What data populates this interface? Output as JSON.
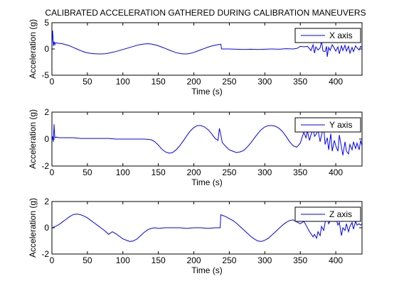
{
  "title": "CALIBRATED ACCELERATION GATHERED DURING CALIBRATION MANEUVERS",
  "colors": {
    "line": "#0000ff",
    "axes": "#000000",
    "background": "#ffffff"
  },
  "chart_data": [
    {
      "type": "line",
      "title": "CALIBRATED ACCELERATION GATHERED DURING CALIBRATION MANEUVERS",
      "xlabel": "Time (s)",
      "ylabel": "Acceleration (g)",
      "xlim": [
        0,
        437
      ],
      "ylim": [
        -5,
        5
      ],
      "xticks": [
        0,
        50,
        100,
        150,
        200,
        250,
        300,
        350,
        400
      ],
      "yticks": [
        -5,
        0,
        5
      ],
      "grid": false,
      "legend_position": "top-right",
      "series": [
        {
          "name": "X axis",
          "x": [
            0,
            1,
            2,
            3,
            4,
            5,
            8,
            12,
            16,
            20,
            25,
            30,
            35,
            40,
            45,
            50,
            55,
            60,
            65,
            70,
            75,
            80,
            85,
            90,
            95,
            100,
            105,
            110,
            115,
            120,
            125,
            130,
            135,
            140,
            145,
            150,
            155,
            160,
            165,
            170,
            175,
            180,
            185,
            190,
            195,
            200,
            205,
            210,
            215,
            220,
            225,
            230,
            235,
            238,
            239,
            240,
            250,
            260,
            270,
            280,
            290,
            300,
            310,
            320,
            330,
            340,
            345,
            348,
            350,
            355,
            360,
            362,
            365,
            368,
            370,
            372,
            375,
            378,
            380,
            382,
            385,
            387,
            388,
            390,
            392,
            395,
            398,
            400,
            403,
            405,
            408,
            410,
            413,
            415,
            418,
            420,
            423,
            425,
            428,
            430,
            433,
            435,
            437
          ],
          "y": [
            1.0,
            3.5,
            0.6,
            1.4,
            0.8,
            1.2,
            1.1,
            1.05,
            0.95,
            0.8,
            0.6,
            0.3,
            0.0,
            -0.3,
            -0.55,
            -0.75,
            -0.85,
            -0.9,
            -0.95,
            -0.95,
            -0.9,
            -0.8,
            -0.65,
            -0.5,
            -0.3,
            -0.1,
            0.1,
            0.3,
            0.5,
            0.7,
            0.85,
            0.95,
            1.0,
            0.95,
            0.8,
            0.6,
            0.35,
            0.1,
            -0.2,
            -0.45,
            -0.7,
            -0.85,
            -0.95,
            -0.95,
            -0.85,
            -0.65,
            -0.4,
            -0.15,
            0.1,
            0.35,
            0.55,
            0.7,
            0.85,
            0.9,
            0.0,
            0.0,
            0.0,
            -0.05,
            -0.1,
            -0.05,
            -0.1,
            -0.05,
            0.0,
            -0.05,
            0.05,
            0.0,
            0.1,
            0.3,
            0.5,
            0.4,
            0.5,
            0.2,
            -0.3,
            0.8,
            -0.8,
            0.4,
            -0.2,
            0.2,
            1.5,
            -0.4,
            -0.5,
            0.5,
            -1.5,
            0.3,
            -0.3,
            0.8,
            0.1,
            -0.4,
            0.4,
            -0.9,
            0.6,
            -0.3,
            0.7,
            -0.4,
            0.5,
            -0.8,
            0.3,
            -0.5,
            0.6,
            0.2,
            -0.2,
            0.5,
            0.3
          ]
        }
      ]
    },
    {
      "type": "line",
      "xlabel": "Time (s)",
      "ylabel": "Acceleration (g)",
      "xlim": [
        0,
        437
      ],
      "ylim": [
        -2,
        2
      ],
      "xticks": [
        0,
        50,
        100,
        150,
        200,
        250,
        300,
        350,
        400
      ],
      "yticks": [
        -2,
        0,
        2
      ],
      "grid": false,
      "legend_position": "top-right",
      "series": [
        {
          "name": "Y axis",
          "x": [
            0,
            1,
            2,
            3,
            4,
            6,
            10,
            20,
            30,
            40,
            50,
            60,
            70,
            80,
            90,
            100,
            110,
            120,
            130,
            140,
            145,
            150,
            155,
            160,
            165,
            170,
            175,
            180,
            185,
            190,
            195,
            200,
            205,
            210,
            215,
            220,
            225,
            230,
            234,
            236,
            238,
            240,
            245,
            250,
            255,
            260,
            265,
            270,
            275,
            280,
            285,
            290,
            295,
            300,
            305,
            310,
            315,
            320,
            325,
            330,
            335,
            340,
            345,
            350,
            353,
            355,
            358,
            360,
            363,
            365,
            368,
            370,
            373,
            375,
            378,
            380,
            383,
            385,
            388,
            390,
            393,
            395,
            398,
            400,
            403,
            405,
            408,
            410,
            413,
            415,
            418,
            420,
            423,
            425,
            428,
            430,
            433,
            435,
            437
          ],
          "y": [
            0.0,
            0.2,
            -0.2,
            1.1,
            0.1,
            0.15,
            0.1,
            0.1,
            0.1,
            0.05,
            0.05,
            0.05,
            0.05,
            0.05,
            0.0,
            0.0,
            0.0,
            0.0,
            0.0,
            -0.05,
            -0.2,
            -0.45,
            -0.75,
            -0.95,
            -1.05,
            -1.0,
            -0.8,
            -0.5,
            -0.15,
            0.25,
            0.6,
            0.85,
            1.0,
            1.0,
            0.9,
            0.7,
            0.4,
            0.05,
            -0.1,
            0.8,
            0.3,
            -0.25,
            -0.55,
            -0.8,
            -0.9,
            -1.0,
            -0.95,
            -0.85,
            -0.6,
            -0.3,
            0.05,
            0.4,
            0.7,
            0.9,
            1.0,
            1.0,
            0.95,
            0.8,
            0.55,
            0.2,
            -0.2,
            -0.5,
            -0.6,
            -0.3,
            0.2,
            0.5,
            0.1,
            0.6,
            -0.1,
            0.3,
            0.8,
            0.2,
            0.4,
            0.7,
            -0.2,
            0.3,
            0.9,
            -0.4,
            0.1,
            -0.8,
            0.4,
            -0.9,
            -0.1,
            -0.5,
            -0.9,
            0.3,
            -0.6,
            -1.2,
            -0.2,
            -0.9,
            -1.1,
            -0.4,
            -0.8,
            -0.2,
            -0.7,
            -0.3,
            -0.8,
            -0.1,
            -0.5
          ]
        }
      ]
    },
    {
      "type": "line",
      "xlabel": "Time (s)",
      "ylabel": "Acceleration (g)",
      "xlim": [
        0,
        437
      ],
      "ylim": [
        -2,
        2
      ],
      "xticks": [
        0,
        50,
        100,
        150,
        200,
        250,
        300,
        350,
        400
      ],
      "yticks": [
        -2,
        0,
        2
      ],
      "grid": false,
      "legend_position": "top-right",
      "series": [
        {
          "name": "Z axis",
          "x": [
            0,
            5,
            10,
            15,
            20,
            25,
            30,
            35,
            40,
            45,
            50,
            55,
            60,
            65,
            70,
            75,
            80,
            85,
            90,
            95,
            100,
            105,
            110,
            115,
            120,
            125,
            130,
            135,
            140,
            145,
            150,
            160,
            170,
            180,
            190,
            200,
            210,
            220,
            230,
            237,
            238,
            240,
            245,
            250,
            255,
            260,
            265,
            270,
            275,
            280,
            285,
            290,
            295,
            300,
            305,
            310,
            315,
            320,
            325,
            330,
            335,
            340,
            345,
            350,
            355,
            360,
            363,
            365,
            368,
            370,
            373,
            375,
            378,
            380,
            383,
            385,
            388,
            390,
            393,
            395,
            398,
            400,
            403,
            405,
            408,
            410,
            413,
            415,
            418,
            420,
            423,
            425,
            428,
            430,
            433,
            435,
            437
          ],
          "y": [
            0.0,
            0.1,
            0.25,
            0.45,
            0.65,
            0.85,
            1.0,
            1.05,
            1.0,
            0.9,
            0.75,
            0.55,
            0.35,
            0.15,
            -0.05,
            -0.25,
            -0.5,
            -0.3,
            -0.45,
            -0.65,
            -0.85,
            -0.95,
            -1.05,
            -1.0,
            -0.85,
            -0.6,
            -0.35,
            -0.15,
            -0.05,
            0.0,
            -0.05,
            0.0,
            0.0,
            0.0,
            -0.05,
            0.0,
            0.0,
            -0.05,
            0.0,
            0.0,
            1.0,
            0.95,
            0.85,
            0.7,
            0.55,
            0.35,
            0.1,
            -0.15,
            -0.4,
            -0.65,
            -0.85,
            -1.0,
            -1.05,
            -0.95,
            -0.8,
            -0.55,
            -0.3,
            -0.05,
            0.2,
            0.4,
            0.55,
            0.6,
            0.45,
            0.3,
            0.5,
            0.0,
            -0.3,
            -0.45,
            -0.7,
            -0.5,
            -0.8,
            -0.3,
            -0.6,
            0.1,
            -0.2,
            0.4,
            0.9,
            0.3,
            0.6,
            1.0,
            0.5,
            0.8,
            0.2,
            0.4,
            -0.6,
            0.0,
            -0.2,
            0.3,
            -0.3,
            0.1,
            0.4,
            -0.1,
            0.5,
            0.2,
            0.3,
            0.2,
            0.3
          ]
        }
      ]
    }
  ]
}
